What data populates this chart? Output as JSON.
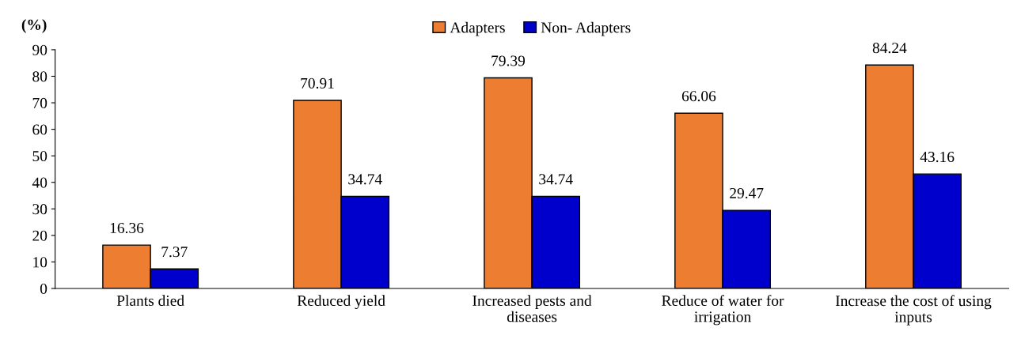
{
  "chart_data": {
    "type": "bar",
    "ylabel": "(%)",
    "categories": [
      "Plants died",
      "Reduced yield",
      "Increased pests and\ndiseases",
      "Reduce of water for\nirrigation",
      "Increase the cost of using\ninputs"
    ],
    "series": [
      {
        "name": "Adapters",
        "color": "#ed7d31",
        "values": [
          16.36,
          70.91,
          79.39,
          66.06,
          84.24
        ]
      },
      {
        "name": "Non- Adapters",
        "color": "#0000cc",
        "values": [
          7.37,
          34.74,
          34.74,
          29.47,
          43.16
        ]
      }
    ],
    "ylim": [
      0,
      90
    ],
    "yticks": [
      0,
      10,
      20,
      30,
      40,
      50,
      60,
      70,
      80,
      90
    ],
    "data_labels": true,
    "legend": "top",
    "grid": false
  }
}
